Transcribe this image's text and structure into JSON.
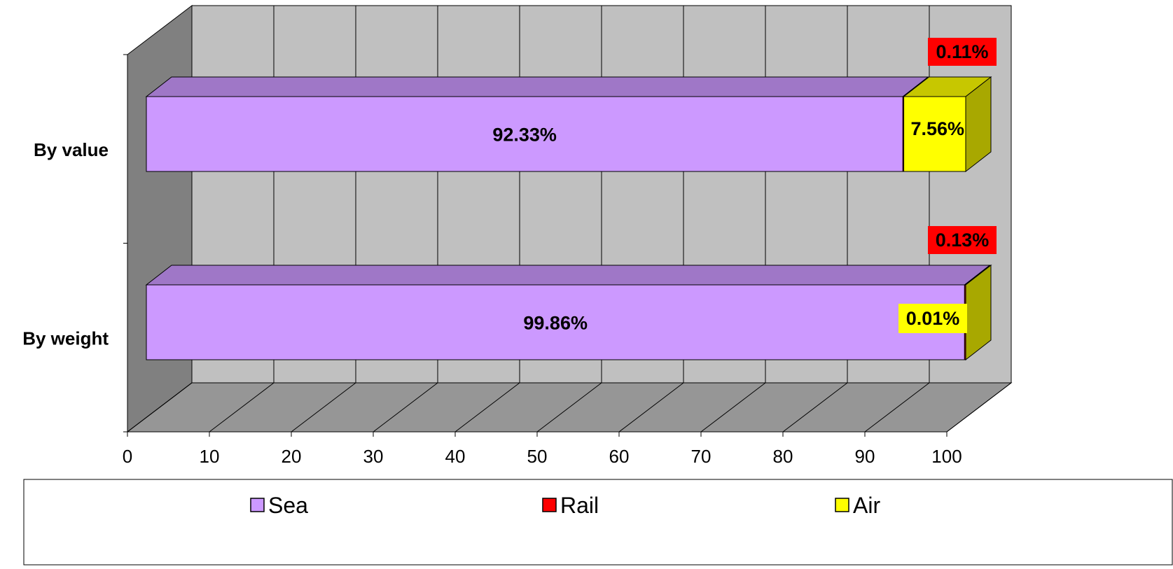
{
  "chart_data": {
    "type": "bar",
    "orientation": "horizontal",
    "stacked": true,
    "three_d": true,
    "categories": [
      "By value",
      "By weight"
    ],
    "series": [
      {
        "name": "Sea",
        "color": "#cc99ff",
        "values": [
          92.33,
          99.86
        ],
        "labels": [
          "92.33%",
          "99.86%"
        ]
      },
      {
        "name": "Rail",
        "color": "#ff0000",
        "values": [
          0.11,
          0.13
        ],
        "labels": [
          "0.11%",
          "0.13%"
        ]
      },
      {
        "name": "Air",
        "color": "#ffff00",
        "values": [
          7.56,
          0.01
        ],
        "labels": [
          "7.56%",
          "0.01%"
        ]
      }
    ],
    "xlim": [
      0,
      100
    ],
    "xticks": [
      "0",
      "10",
      "20",
      "30",
      "40",
      "50",
      "60",
      "70",
      "80",
      "90",
      "100"
    ],
    "grid": true,
    "legend_position": "bottom",
    "title": "",
    "xlabel": "",
    "ylabel": ""
  }
}
